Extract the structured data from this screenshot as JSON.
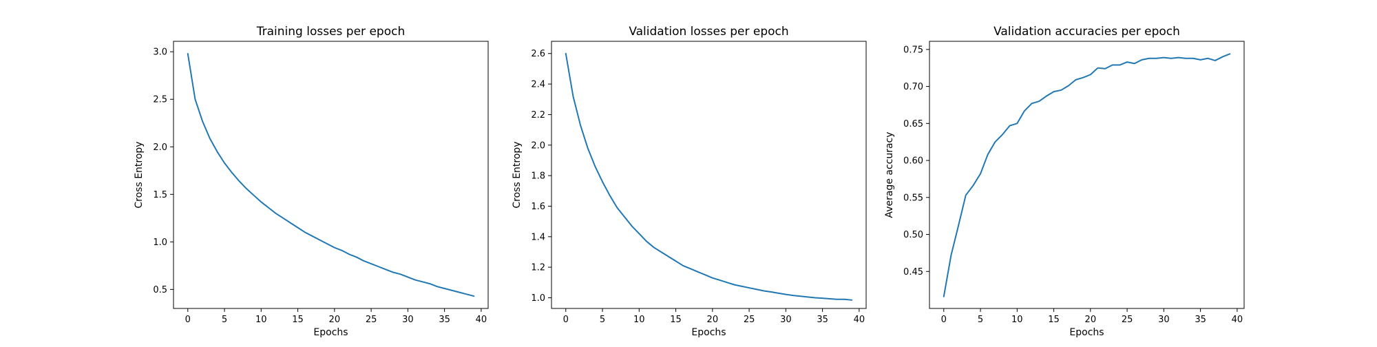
{
  "colors": {
    "series": "#1f77b4",
    "axes": "#000000",
    "background": "#ffffff"
  },
  "chart_data": [
    {
      "type": "line",
      "title": "Training losses per epoch",
      "xlabel": "Epochs",
      "ylabel": "Cross Entropy",
      "xlim": [
        -1.95,
        40.95
      ],
      "ylim": [
        0.3,
        3.11
      ],
      "xticks": [
        0,
        5,
        10,
        15,
        20,
        25,
        30,
        35,
        40
      ],
      "yticks": [
        0.5,
        1.0,
        1.5,
        2.0,
        2.5,
        3.0
      ],
      "ytick_labels": [
        "0.5",
        "1.0",
        "1.5",
        "2.0",
        "2.5",
        "3.0"
      ],
      "grid": false,
      "x": [
        0,
        1,
        2,
        3,
        4,
        5,
        6,
        7,
        8,
        9,
        10,
        11,
        12,
        13,
        14,
        15,
        16,
        17,
        18,
        19,
        20,
        21,
        22,
        23,
        24,
        25,
        26,
        27,
        28,
        29,
        30,
        31,
        32,
        33,
        34,
        35,
        36,
        37,
        38,
        39
      ],
      "series": [
        {
          "values": [
            2.98,
            2.5,
            2.27,
            2.09,
            1.95,
            1.83,
            1.73,
            1.64,
            1.56,
            1.49,
            1.42,
            1.36,
            1.3,
            1.25,
            1.2,
            1.15,
            1.1,
            1.06,
            1.02,
            0.98,
            0.94,
            0.91,
            0.87,
            0.84,
            0.8,
            0.77,
            0.74,
            0.71,
            0.68,
            0.66,
            0.63,
            0.6,
            0.58,
            0.56,
            0.53,
            0.51,
            0.49,
            0.47,
            0.45,
            0.43
          ]
        }
      ]
    },
    {
      "type": "line",
      "title": "Validation losses per epoch",
      "xlabel": "Epochs",
      "ylabel": "Cross Entropy",
      "xlim": [
        -1.95,
        40.95
      ],
      "ylim": [
        0.93,
        2.68
      ],
      "xticks": [
        0,
        5,
        10,
        15,
        20,
        25,
        30,
        35,
        40
      ],
      "yticks": [
        1.0,
        1.2,
        1.4,
        1.6,
        1.8,
        2.0,
        2.2,
        2.4,
        2.6
      ],
      "ytick_labels": [
        "1.0",
        "1.2",
        "1.4",
        "1.6",
        "1.8",
        "2.0",
        "2.2",
        "2.4",
        "2.6"
      ],
      "grid": false,
      "x": [
        0,
        1,
        2,
        3,
        4,
        5,
        6,
        7,
        8,
        9,
        10,
        11,
        12,
        13,
        14,
        15,
        16,
        17,
        18,
        19,
        20,
        21,
        22,
        23,
        24,
        25,
        26,
        27,
        28,
        29,
        30,
        31,
        32,
        33,
        34,
        35,
        36,
        37,
        38,
        39
      ],
      "series": [
        {
          "values": [
            2.6,
            2.32,
            2.13,
            1.98,
            1.86,
            1.76,
            1.67,
            1.59,
            1.53,
            1.47,
            1.42,
            1.37,
            1.33,
            1.3,
            1.27,
            1.24,
            1.21,
            1.19,
            1.17,
            1.15,
            1.13,
            1.115,
            1.1,
            1.085,
            1.075,
            1.065,
            1.055,
            1.045,
            1.038,
            1.03,
            1.022,
            1.015,
            1.01,
            1.005,
            1.0,
            0.997,
            0.993,
            0.99,
            0.99,
            0.985
          ]
        }
      ]
    },
    {
      "type": "line",
      "title": "Validation accuracies per epoch",
      "xlabel": "Epochs",
      "ylabel": "Average accuracy",
      "xlim": [
        -1.95,
        40.95
      ],
      "ylim": [
        0.4,
        0.761
      ],
      "xticks": [
        0,
        5,
        10,
        15,
        20,
        25,
        30,
        35,
        40
      ],
      "yticks": [
        0.45,
        0.5,
        0.55,
        0.6,
        0.65,
        0.7,
        0.75
      ],
      "ytick_labels": [
        "0.45",
        "0.50",
        "0.55",
        "0.60",
        "0.65",
        "0.70",
        "0.75"
      ],
      "grid": false,
      "x": [
        0,
        1,
        2,
        3,
        4,
        5,
        6,
        7,
        8,
        9,
        10,
        11,
        12,
        13,
        14,
        15,
        16,
        17,
        18,
        19,
        20,
        21,
        22,
        23,
        24,
        25,
        26,
        27,
        28,
        29,
        30,
        31,
        32,
        33,
        34,
        35,
        36,
        37,
        38,
        39
      ],
      "series": [
        {
          "values": [
            0.416,
            0.472,
            0.512,
            0.553,
            0.566,
            0.582,
            0.608,
            0.625,
            0.635,
            0.647,
            0.65,
            0.667,
            0.677,
            0.68,
            0.687,
            0.693,
            0.695,
            0.701,
            0.709,
            0.712,
            0.716,
            0.725,
            0.724,
            0.729,
            0.729,
            0.733,
            0.731,
            0.736,
            0.738,
            0.738,
            0.739,
            0.738,
            0.739,
            0.738,
            0.738,
            0.736,
            0.738,
            0.735,
            0.74,
            0.744
          ]
        }
      ]
    }
  ]
}
